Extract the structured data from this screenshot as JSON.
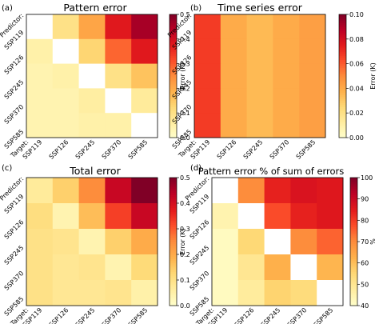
{
  "chart_data": [
    {
      "type": "heatmap",
      "panel_label": "(a)",
      "title": "Pattern error",
      "row_axis_prefix": "Predictor:",
      "col_axis_prefix": "Target:",
      "rows": [
        "SSP119",
        "SSP126",
        "SSP245",
        "SSP370",
        "SSP585"
      ],
      "cols": [
        "SSP119",
        "SSP126",
        "SSP245",
        "SSP370",
        "SSP585"
      ],
      "values": [
        [
          null,
          0.1,
          0.21,
          0.38,
          0.46
        ],
        [
          0.05,
          null,
          0.13,
          0.29,
          0.38
        ],
        [
          0.04,
          0.05,
          null,
          0.1,
          0.16
        ],
        [
          0.04,
          0.04,
          0.06,
          null,
          0.07
        ],
        [
          0.04,
          0.04,
          0.05,
          0.05,
          null
        ]
      ],
      "colorbar": {
        "label": "Error (K)",
        "min": 0.0,
        "max": 0.5,
        "ticks": [
          "0.0",
          "0.1",
          "0.2",
          "0.3",
          "0.4",
          "0.5"
        ]
      }
    },
    {
      "type": "heatmap",
      "panel_label": "(b)",
      "title": "Time series error",
      "row_axis_prefix": "Predictor:",
      "col_axis_prefix": "Target:",
      "rows": [
        "SSP119",
        "SSP126",
        "SSP245",
        "SSP370",
        "SSP585"
      ],
      "cols": [
        "SSP119",
        "SSP126",
        "SSP245",
        "SSP370",
        "SSP585"
      ],
      "values": [
        [
          0.067,
          0.04,
          0.035,
          0.04,
          0.044
        ],
        [
          0.067,
          0.04,
          0.035,
          0.04,
          0.044
        ],
        [
          0.067,
          0.04,
          0.035,
          0.04,
          0.044
        ],
        [
          0.067,
          0.04,
          0.035,
          0.04,
          0.044
        ],
        [
          0.067,
          0.04,
          0.035,
          0.04,
          0.044
        ]
      ],
      "colorbar": {
        "label": "Error (K)",
        "min": 0.0,
        "max": 0.1,
        "ticks": [
          "0.00",
          "0.02",
          "0.04",
          "0.06",
          "0.08",
          "0.10"
        ]
      }
    },
    {
      "type": "heatmap",
      "panel_label": "(c)",
      "title": "Total error",
      "row_axis_prefix": "Predictor:",
      "col_axis_prefix": "Target:",
      "rows": [
        "SSP119",
        "SSP126",
        "SSP245",
        "SSP370",
        "SSP585"
      ],
      "cols": [
        "SSP119",
        "SSP126",
        "SSP245",
        "SSP370",
        "SSP585"
      ],
      "values": [
        [
          0.07,
          0.14,
          0.25,
          0.42,
          0.5
        ],
        [
          0.11,
          0.04,
          0.17,
          0.33,
          0.42
        ],
        [
          0.1,
          0.09,
          0.04,
          0.14,
          0.2
        ],
        [
          0.1,
          0.08,
          0.09,
          0.04,
          0.12
        ],
        [
          0.1,
          0.08,
          0.08,
          0.09,
          0.05
        ]
      ],
      "colorbar": {
        "label": "Error (K)",
        "min": 0.0,
        "max": 0.5,
        "ticks": [
          "0.0",
          "0.1",
          "0.2",
          "0.3",
          "0.4",
          "0.5"
        ]
      }
    },
    {
      "type": "heatmap",
      "panel_label": "(d)",
      "title": "Pattern error % of sum of errors",
      "row_axis_prefix": "Predictor:",
      "col_axis_prefix": "Target:",
      "rows": [
        "SSP119",
        "SSP126",
        "SSP245",
        "SSP370",
        "SSP585"
      ],
      "cols": [
        "SSP119",
        "SSP126",
        "SSP245",
        "SSP370",
        "SSP585"
      ],
      "values": [
        [
          null,
          70,
          84,
          87,
          86
        ],
        [
          45,
          null,
          78,
          84,
          86
        ],
        [
          42,
          55,
          null,
          70,
          75
        ],
        [
          42,
          50,
          63,
          null,
          62
        ],
        [
          42,
          48,
          56,
          54,
          null
        ]
      ],
      "colorbar": {
        "label": "%",
        "min": 40,
        "max": 100,
        "ticks": [
          "40",
          "50",
          "60",
          "70",
          "80",
          "90",
          "100"
        ]
      }
    }
  ]
}
